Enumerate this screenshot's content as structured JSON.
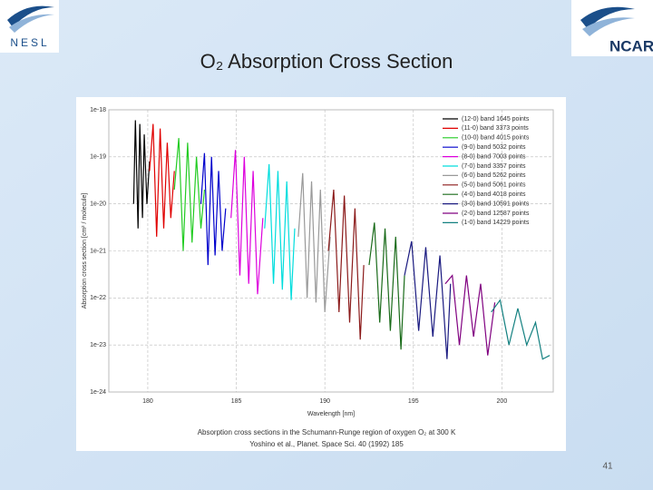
{
  "slide": {
    "logos": [
      "NESL",
      "NCAR"
    ],
    "title": "O₂ Absorption Cross Section",
    "page_number": 41
  },
  "chart_data": {
    "type": "line",
    "log_y": true,
    "grid": true,
    "legend": "top-right",
    "xlabel": "Wavelength [nm]",
    "ylabel": "Absorption cross section [cm² / molecule]",
    "caption": [
      "Absorption cross sections in the Schumann-Runge region of oxygen O₂ at 300 K",
      "Yoshino et al., Planet. Space Sci. 40 (1992) 185"
    ],
    "xlim": [
      177.8,
      202.9
    ],
    "xticks": [
      180,
      185,
      190,
      195,
      200
    ],
    "ylim": [
      1e-24,
      1e-18
    ],
    "yticks": [
      1e-18,
      1e-19,
      1e-20,
      1e-21,
      1e-22,
      1e-23,
      1e-24
    ],
    "series": [
      {
        "name": "(12-0) band 1645 points",
        "color": "#000000",
        "x": [
          179.2,
          179.3,
          179.45,
          179.55,
          179.7,
          179.8,
          179.95,
          180.1
        ],
        "values": [
          1e-20,
          6e-19,
          3e-21,
          5e-19,
          5e-21,
          3e-19,
          1e-20,
          8e-20
        ]
      },
      {
        "name": "(11-0) band 3373 points",
        "color": "#e00000",
        "x": [
          180.1,
          180.3,
          180.5,
          180.7,
          180.9,
          181.1,
          181.3,
          181.5
        ],
        "values": [
          5e-20,
          5e-19,
          2e-21,
          4e-19,
          3e-21,
          2e-19,
          5e-21,
          5e-20
        ]
      },
      {
        "name": "(10-0) band 4015 points",
        "color": "#22cc22",
        "x": [
          181.5,
          181.75,
          182,
          182.25,
          182.5,
          182.75,
          183,
          183.2
        ],
        "values": [
          2e-20,
          2.5e-19,
          1e-21,
          2e-19,
          1.5e-21,
          1e-19,
          3e-21,
          2e-20
        ]
      },
      {
        "name": "(9-0) band 5032 points",
        "color": "#0000cc",
        "x": [
          183,
          183.2,
          183.4,
          183.6,
          183.8,
          184,
          184.2,
          184.4
        ],
        "values": [
          1e-20,
          1.2e-19,
          5e-22,
          1e-19,
          8e-22,
          5e-20,
          1e-21,
          8e-21
        ]
      },
      {
        "name": "(8-0) band 7003 points",
        "color": "#dd00dd",
        "x": [
          184.7,
          184.95,
          185.2,
          185.45,
          185.7,
          185.95,
          186.2,
          186.5
        ],
        "values": [
          5e-21,
          1.4e-19,
          3e-22,
          1e-19,
          2e-22,
          5e-20,
          1.2e-22,
          5e-21
        ]
      },
      {
        "name": "(7-0) band 3357 points",
        "color": "#00dddd",
        "x": [
          186.6,
          186.85,
          187.1,
          187.35,
          187.6,
          187.85,
          188.1,
          188.3
        ],
        "values": [
          3e-21,
          7e-20,
          2e-22,
          5e-20,
          1.5e-22,
          3e-20,
          9e-23,
          3e-21
        ]
      },
      {
        "name": "(6-0) band 5262 points",
        "color": "#999999",
        "x": [
          188.5,
          188.75,
          189,
          189.25,
          189.5,
          189.75,
          190,
          190.3
        ],
        "values": [
          2e-21,
          4.5e-20,
          1e-22,
          3e-20,
          8e-23,
          2e-20,
          5e-23,
          2e-21
        ]
      },
      {
        "name": "(5-0) band 5061 points",
        "color": "#8b1a1a",
        "x": [
          190.2,
          190.5,
          190.8,
          191.1,
          191.4,
          191.7,
          192,
          192.2
        ],
        "values": [
          1e-21,
          2e-20,
          5e-23,
          1.5e-20,
          3e-23,
          8e-21,
          1.3e-23,
          5e-22
        ]
      },
      {
        "name": "(4-0) band 4018 points",
        "color": "#1a6b1a",
        "x": [
          192.5,
          192.8,
          193.1,
          193.4,
          193.7,
          194,
          194.3,
          194.5
        ],
        "values": [
          5e-22,
          4e-21,
          3e-23,
          3e-21,
          2e-23,
          2e-21,
          8e-24,
          3e-22
        ]
      },
      {
        "name": "(3-0) band 10591 points",
        "color": "#1a1a80",
        "x": [
          194.5,
          194.9,
          195.3,
          195.7,
          196.1,
          196.5,
          196.9,
          197.1
        ],
        "values": [
          3e-22,
          1.6e-21,
          2e-23,
          1.2e-21,
          1.5e-23,
          8e-22,
          5e-24,
          2e-22
        ]
      },
      {
        "name": "(2-0) band 12587 points",
        "color": "#800080",
        "x": [
          196.8,
          197.2,
          197.6,
          198,
          198.4,
          198.8,
          199.2,
          199.6
        ],
        "values": [
          2e-22,
          3e-22,
          1e-23,
          3e-22,
          1.5e-23,
          2e-22,
          6e-24,
          8e-23
        ]
      },
      {
        "name": "(1-0) band 14229 points",
        "color": "#138080",
        "x": [
          199.4,
          199.9,
          200.4,
          200.9,
          201.4,
          201.9,
          202.3,
          202.7
        ],
        "values": [
          5e-23,
          9e-23,
          1e-23,
          6e-23,
          1e-23,
          3e-23,
          5e-24,
          6e-24
        ]
      }
    ]
  }
}
